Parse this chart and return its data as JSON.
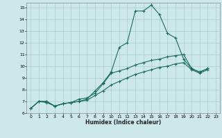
{
  "xlabel": "Humidex (Indice chaleur)",
  "ylabel": "",
  "bg_color": "#cce8e8",
  "line_color": "#1a6b5a",
  "grid_color": "#aacccc",
  "xlim": [
    -0.5,
    23.5
  ],
  "ylim": [
    6,
    15.4
  ],
  "xticks": [
    0,
    1,
    2,
    3,
    4,
    5,
    6,
    7,
    8,
    9,
    10,
    11,
    12,
    13,
    14,
    15,
    16,
    17,
    18,
    19,
    20,
    21,
    22,
    23
  ],
  "yticks": [
    6,
    7,
    8,
    9,
    10,
    11,
    12,
    13,
    14,
    15
  ],
  "series1_x": [
    0,
    1,
    2,
    3,
    4,
    5,
    6,
    7,
    8,
    9,
    10,
    11,
    12,
    13,
    14,
    15,
    16,
    17,
    18,
    19,
    20,
    21,
    22
  ],
  "series1_y": [
    6.4,
    7.0,
    6.9,
    6.6,
    6.8,
    6.9,
    7.0,
    7.2,
    7.9,
    8.6,
    9.5,
    11.6,
    12.0,
    14.7,
    14.7,
    15.2,
    14.4,
    12.8,
    12.4,
    10.6,
    9.8,
    9.5,
    9.8
  ],
  "series2_x": [
    0,
    1,
    2,
    3,
    4,
    5,
    6,
    7,
    8,
    9,
    10,
    11,
    12,
    13,
    14,
    15,
    16,
    17,
    18,
    19,
    20,
    21,
    22
  ],
  "series2_y": [
    6.4,
    7.0,
    7.0,
    6.6,
    6.8,
    6.9,
    7.2,
    7.3,
    7.7,
    8.5,
    9.4,
    9.6,
    9.8,
    10.1,
    10.3,
    10.5,
    10.6,
    10.8,
    10.9,
    11.0,
    9.8,
    9.5,
    9.8
  ],
  "series3_x": [
    0,
    1,
    2,
    3,
    4,
    5,
    6,
    7,
    8,
    9,
    10,
    11,
    12,
    13,
    14,
    15,
    16,
    17,
    18,
    19,
    20,
    21,
    22
  ],
  "series3_y": [
    6.4,
    7.0,
    7.0,
    6.6,
    6.8,
    6.9,
    7.0,
    7.1,
    7.5,
    7.9,
    8.4,
    8.7,
    9.0,
    9.3,
    9.5,
    9.7,
    9.9,
    10.0,
    10.2,
    10.3,
    9.7,
    9.4,
    9.7
  ]
}
